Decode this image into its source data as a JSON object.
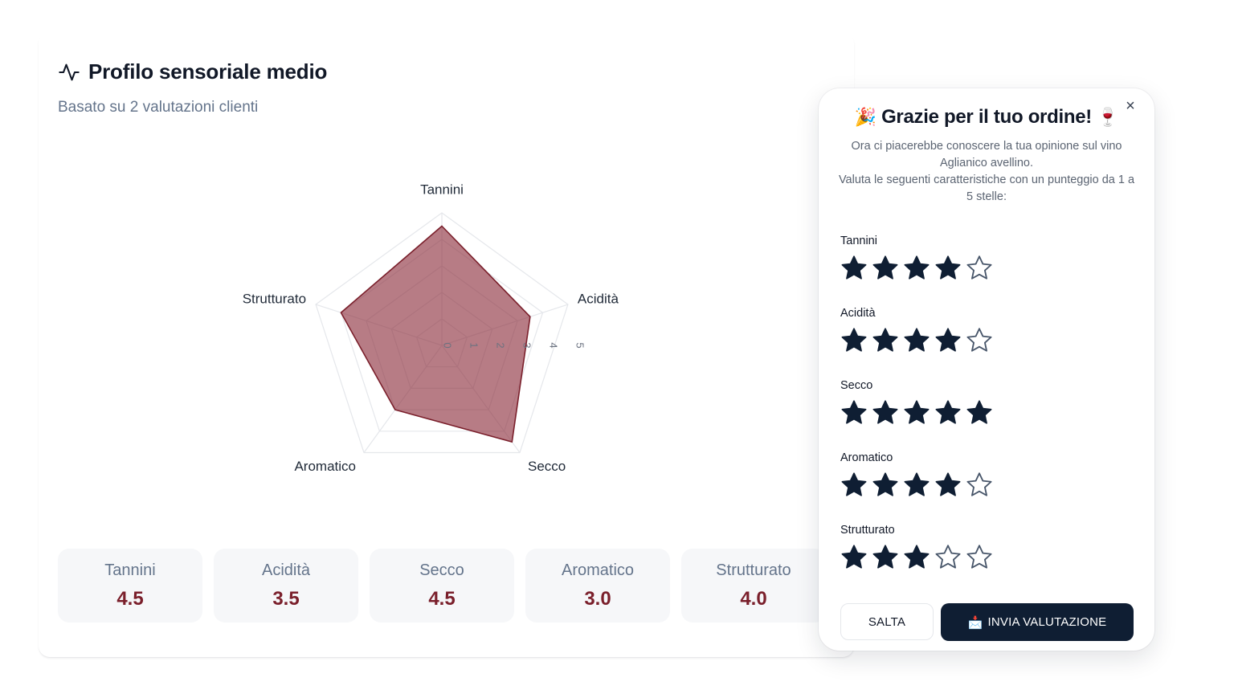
{
  "profile": {
    "title": "Profilo sensoriale medio",
    "subtitle": "Basato su 2 valutazioni clienti"
  },
  "chart_data": {
    "type": "radar",
    "axes": [
      "Tannini",
      "Acidità",
      "Secco",
      "Aromatico",
      "Strutturato"
    ],
    "values": [
      4.5,
      3.5,
      4.5,
      3.0,
      4.0
    ],
    "range": [
      0,
      5
    ],
    "ticks": [
      "0",
      "1",
      "2",
      "3",
      "4",
      "5"
    ],
    "fill_color": "#8b2c3a",
    "grid": true
  },
  "stats": [
    {
      "label": "Tannini",
      "value": "4.5"
    },
    {
      "label": "Acidità",
      "value": "3.5"
    },
    {
      "label": "Secco",
      "value": "4.5"
    },
    {
      "label": "Aromatico",
      "value": "3.0"
    },
    {
      "label": "Strutturato",
      "value": "4.0"
    }
  ],
  "modal": {
    "close_label": "×",
    "emoji_left": "🎉",
    "title": "Grazie per il tuo ordine!",
    "emoji_right": "🍷",
    "desc_line1": "Ora ci piacerebbe conoscere la tua opinione sul vino Aglianico avellino.",
    "desc_line2": "Valuta le seguenti caratteristiche con un punteggio da 1 a 5 stelle:",
    "criteria": [
      {
        "label": "Tannini",
        "rating": 4,
        "max": 5
      },
      {
        "label": "Acidità",
        "rating": 4,
        "max": 5
      },
      {
        "label": "Secco",
        "rating": 5,
        "max": 5
      },
      {
        "label": "Aromatico",
        "rating": 4,
        "max": 5
      },
      {
        "label": "Strutturato",
        "rating": 3,
        "max": 5
      }
    ],
    "skip_label": "SALTA",
    "send_icon": "📩",
    "send_label": "INVIA VALUTAZIONE"
  },
  "colors": {
    "star_filled": "#0f1e33",
    "star_empty_stroke": "#475569",
    "accent": "#7a1f2b"
  }
}
